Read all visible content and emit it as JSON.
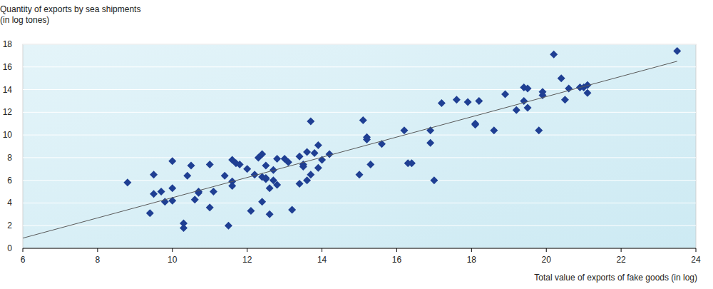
{
  "chart_data": {
    "type": "scatter",
    "y_label": "Quantity of exports by sea shipments (in log tones)",
    "x_label": "Total value of exports of fake goods (in log)",
    "xlim": [
      6,
      24
    ],
    "xticks": [
      6,
      8,
      10,
      12,
      14,
      16,
      18,
      20,
      22,
      24
    ],
    "ylim": [
      0,
      18
    ],
    "yticks": [
      0,
      2,
      4,
      6,
      8,
      10,
      12,
      14,
      16,
      18
    ],
    "grid": true,
    "series": [
      {
        "type": "scatter",
        "marker": "diamond",
        "color": "#1f3f93",
        "x": [
          8.8,
          9.4,
          9.5,
          9.5,
          9.7,
          9.8,
          10.0,
          10.0,
          10.0,
          10.3,
          10.3,
          10.4,
          10.5,
          10.6,
          10.7,
          10.7,
          11.0,
          11.0,
          11.1,
          11.4,
          11.5,
          11.6,
          11.6,
          11.6,
          11.7,
          11.8,
          12.0,
          12.1,
          12.2,
          12.3,
          12.4,
          12.4,
          12.4,
          12.5,
          12.5,
          12.5,
          12.6,
          12.6,
          12.7,
          12.7,
          12.8,
          12.8,
          13.0,
          13.1,
          13.2,
          13.4,
          13.4,
          13.5,
          13.5,
          13.6,
          13.6,
          13.7,
          13.7,
          13.8,
          13.9,
          13.9,
          14.0,
          14.2,
          15.0,
          15.1,
          15.2,
          15.2,
          15.3,
          15.6,
          16.2,
          16.3,
          16.4,
          16.9,
          16.9,
          17.0,
          17.2,
          17.6,
          17.9,
          18.1,
          18.1,
          18.2,
          18.6,
          18.9,
          19.2,
          19.4,
          19.4,
          19.5,
          19.5,
          19.8,
          19.9,
          19.9,
          20.2,
          20.4,
          20.5,
          20.6,
          20.9,
          21.1,
          21.1,
          21.0,
          23.5
        ],
        "values": [
          5.8,
          3.1,
          6.5,
          4.8,
          5.0,
          4.1,
          7.7,
          5.3,
          4.2,
          1.8,
          2.2,
          6.4,
          7.3,
          4.3,
          5.0,
          4.9,
          7.4,
          3.6,
          5.0,
          6.4,
          2.0,
          5.9,
          5.5,
          7.8,
          7.5,
          7.4,
          7.0,
          3.3,
          6.5,
          8.0,
          6.3,
          4.1,
          8.3,
          7.3,
          6.2,
          6.1,
          5.3,
          3.0,
          6.9,
          6.0,
          5.6,
          7.9,
          7.9,
          7.6,
          3.4,
          8.1,
          5.7,
          7.4,
          7.2,
          8.5,
          6.0,
          6.5,
          11.2,
          8.4,
          9.1,
          7.1,
          7.8,
          8.3,
          6.5,
          11.3,
          9.8,
          9.6,
          7.4,
          9.2,
          10.4,
          7.5,
          7.5,
          10.4,
          9.3,
          6.0,
          12.8,
          13.1,
          12.9,
          10.9,
          11.0,
          13.0,
          10.4,
          13.6,
          12.2,
          14.2,
          13.0,
          14.1,
          12.4,
          10.4,
          13.5,
          13.8,
          17.1,
          15.0,
          13.1,
          14.1,
          14.2,
          13.7,
          14.4,
          14.2,
          17.4
        ]
      },
      {
        "type": "line",
        "line_style": "solid",
        "color": "#595959",
        "x": [
          6,
          23.5
        ],
        "values": [
          0.9,
          16.5
        ]
      }
    ]
  }
}
